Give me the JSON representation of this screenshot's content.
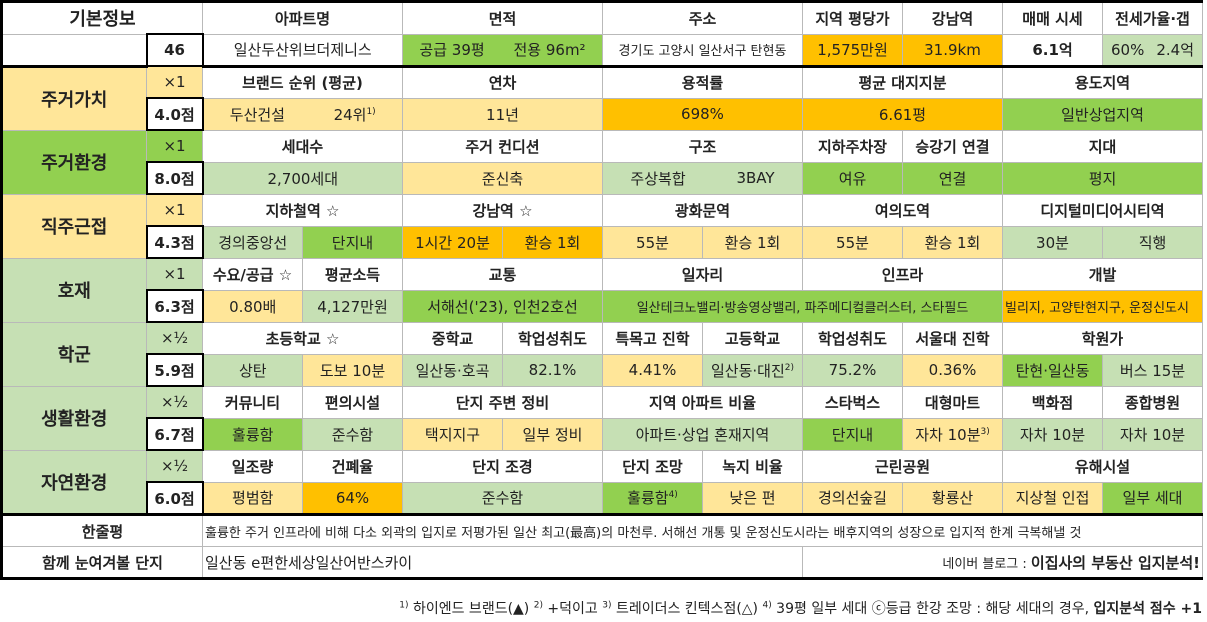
{
  "basic": {
    "section": "기본정보",
    "index": "46",
    "apt_h": "아파트명",
    "apt": "일산두산위브더제니스",
    "area_h": "면적",
    "area_supply": "공급 39평",
    "area_use": "전용 96m²",
    "addr_h": "주소",
    "addr": "경기도 고양시 일산서구 탄현동",
    "pyeong_h": "지역 평당가",
    "pyeong": "1,575만원",
    "gangnam_h": "강남역",
    "gangnam": "31.9km",
    "sale_h": "매매 시세",
    "sale": "6.1억",
    "jeonse_h": "전세가율·갭",
    "jeonse_rate": "60%",
    "jeonse_gap": "2.4억"
  },
  "residence": {
    "section": "주거가치",
    "mult": "×1",
    "score": "4.0점",
    "brand_h": "브랜드 순위 (평균)",
    "brand": "두산건설",
    "brand_rank": "24위",
    "brand_sup": "1)",
    "age_h": "연차",
    "age": "11년",
    "far_h": "용적률",
    "far": "698%",
    "land_h": "평균 대지지분",
    "land": "6.61평",
    "zone_h": "용도지역",
    "zone": "일반상업지역"
  },
  "environment": {
    "section": "주거환경",
    "mult": "×1",
    "score": "8.0점",
    "households_h": "세대수",
    "households": "2,700세대",
    "cond_h": "주거 컨디션",
    "cond": "준신축",
    "struct_h": "구조",
    "struct_type": "주상복합",
    "struct_bay": "3BAY",
    "parking_h": "지하주차장",
    "parking": "여유",
    "elevator_h": "승강기 연결",
    "elevator": "연결",
    "terrain_h": "지대",
    "terrain": "평지"
  },
  "commute": {
    "section": "직주근접",
    "mult": "×1",
    "score": "4.3점",
    "subway_h": "지하철역 ☆",
    "subway_line": "경의중앙선",
    "subway_dist": "단지내",
    "gangnam_h": "강남역 ☆",
    "gangnam_time": "1시간 20분",
    "gangnam_tr": "환승 1회",
    "gwanghwamun_h": "광화문역",
    "gwanghwamun_time": "55분",
    "gwanghwamun_tr": "환승 1회",
    "yeouido_h": "여의도역",
    "yeouido_time": "55분",
    "yeouido_tr": "환승 1회",
    "dmc_h": "디지털미디어시티역",
    "dmc_time": "30분",
    "dmc_tr": "직행"
  },
  "development": {
    "section": "호재",
    "mult": "×1",
    "score": "6.3점",
    "supply_h": "수요/공급 ☆",
    "supply": "0.80배",
    "income_h": "평균소득",
    "income": "4,127만원",
    "traffic_h": "교통",
    "traffic": "서해선('23), 인천2호선",
    "jobs_h": "일자리",
    "jobs": "일산테크노밸리·방송영상밸리, 파주메디컬클러스터, 스타필드",
    "infra_h": "인프라",
    "dev_h": "개발",
    "dev": "빌리지, 고양탄현지구, 운정신도시"
  },
  "school": {
    "section": "학군",
    "mult": "×½",
    "score": "5.9점",
    "elem_h": "초등학교 ☆",
    "elem_level": "상탄",
    "elem_dist": "도보 10분",
    "middle_h": "중학교",
    "middle": "일산동·호곡",
    "middle_ach_h": "학업성취도",
    "middle_ach": "82.1%",
    "special_h": "특목고 진학",
    "special": "4.41%",
    "high_h": "고등학교",
    "high": "일산동·대진",
    "high_sup": "2)",
    "high_ach_h": "학업성취도",
    "high_ach": "75.2%",
    "snu_h": "서울대 진학",
    "snu": "0.36%",
    "academy_h": "학원가",
    "academy": "탄현·일산동",
    "academy_dist": "버스 15분"
  },
  "living": {
    "section": "생활환경",
    "mult": "×½",
    "score": "6.7점",
    "community_h": "커뮤니티",
    "community": "훌륭함",
    "conv_h": "편의시설",
    "conv": "준수함",
    "around_h": "단지 주변 정비",
    "around_type": "택지지구",
    "around_state": "일부 정비",
    "ratio_h": "지역 아파트 비율",
    "ratio": "아파트·상업 혼재지역",
    "starbucks_h": "스타벅스",
    "starbucks": "단지내",
    "mart_h": "대형마트",
    "mart": "자차 10분",
    "mart_sup": "3)",
    "dept_h": "백화점",
    "dept": "자차 10분",
    "hospital_h": "종합병원",
    "hospital": "자차 10분"
  },
  "nature": {
    "section": "자연환경",
    "mult": "×½",
    "score": "6.0점",
    "sun_h": "일조량",
    "sun": "평범함",
    "bcr_h": "건폐율",
    "bcr": "64%",
    "landscape_h": "단지 조경",
    "landscape": "준수함",
    "view_h": "단지 조망",
    "view": "훌륭함",
    "view_sup": "4)",
    "green_h": "녹지 비율",
    "green": "낮은 편",
    "park_h": "근린공원",
    "park_name": "경의선숲길",
    "park_state": "황룡산",
    "hazard_h": "유해시설",
    "hazard": "지상철 인접",
    "hazard_scope": "일부 세대"
  },
  "summary": {
    "one_line_h": "한줄평",
    "one_line": "훌륭한 주거 인프라에 비해 다소 외곽의 입지로 저평가된 일산 최고(最高)의 마천루. 서해선 개통 및 운정신도시라는 배후지역의 성장으로 입지적 한계 극복해낼 것",
    "together_h": "함께 눈여겨볼 단지",
    "together": "일산동 e편한세상일산어반스카이",
    "blog_prefix": "네이버 블로그 : ",
    "blog": "이집사의 부동산 입지분석!"
  },
  "footnote": {
    "n1": "1)",
    "t1": " 하이엔드 브랜드(▲) ",
    "n2": "2)",
    "t2": " +덕이고 ",
    "n3": "3)",
    "t3": " 트레이더스 킨텍스점(△) ",
    "n4": "4)",
    "t4": " 39평 일부 세대 ⓒ등급 한강 조망 : 해당 세대의 경우, ",
    "bold": "입지분석 점수 +1"
  }
}
